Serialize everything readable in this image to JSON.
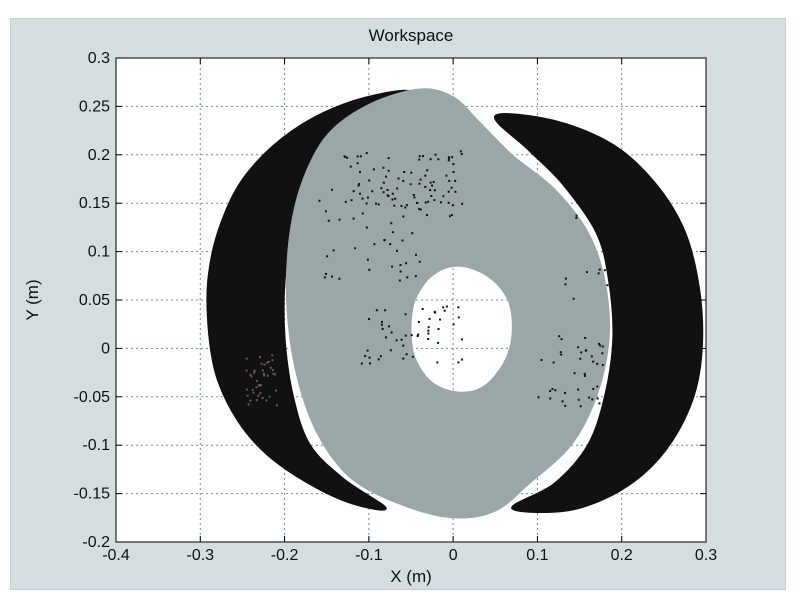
{
  "chart_data": {
    "type": "scatter",
    "title": "Workspace",
    "xlabel": "X (m)",
    "ylabel": "Y (m)",
    "xlim": [
      -0.4,
      0.3
    ],
    "ylim": [
      -0.2,
      0.3
    ],
    "grid": true,
    "xticks": [
      "-0.4",
      "-0.3",
      "-0.2",
      "-0.1",
      "0",
      "0.1",
      "0.2",
      "0.3"
    ],
    "yticks": [
      "-0.2",
      "-0.15",
      "-0.1",
      "-0.05",
      "0",
      "0.05",
      "0.1",
      "0.15",
      "0.2",
      "0.25",
      "0.3"
    ],
    "xtick_values": [
      -0.4,
      -0.3,
      -0.2,
      -0.1,
      0,
      0.1,
      0.2,
      0.3
    ],
    "ytick_values": [
      -0.2,
      -0.15,
      -0.1,
      -0.05,
      0,
      0.05,
      0.1,
      0.15,
      0.2,
      0.25,
      0.3
    ],
    "series": [
      {
        "color": "#111111",
        "regions": [
          {
            "part": "left-crescent",
            "outline": [
              [
                -0.05,
                0.265
              ],
              [
                -0.12,
                0.255
              ],
              [
                -0.19,
                0.225
              ],
              [
                -0.245,
                0.18
              ],
              [
                -0.275,
                0.13
              ],
              [
                -0.29,
                0.075
              ],
              [
                -0.29,
                0.02
              ],
              [
                -0.28,
                -0.03
              ],
              [
                -0.255,
                -0.075
              ],
              [
                -0.22,
                -0.11
              ],
              [
                -0.17,
                -0.14
              ],
              [
                -0.12,
                -0.16
              ],
              [
                -0.08,
                -0.165
              ],
              [
                -0.13,
                -0.135
              ],
              [
                -0.17,
                -0.1
              ],
              [
                -0.19,
                -0.05
              ],
              [
                -0.2,
                0.01
              ],
              [
                -0.2,
                0.07
              ],
              [
                -0.19,
                0.12
              ],
              [
                -0.16,
                0.175
              ],
              [
                -0.1,
                0.23
              ]
            ]
          },
          {
            "part": "right-crescent",
            "outline": [
              [
                0.05,
                0.24
              ],
              [
                0.12,
                0.235
              ],
              [
                0.19,
                0.21
              ],
              [
                0.24,
                0.17
              ],
              [
                0.275,
                0.12
              ],
              [
                0.292,
                0.06
              ],
              [
                0.295,
                0.0
              ],
              [
                0.285,
                -0.05
              ],
              [
                0.26,
                -0.095
              ],
              [
                0.225,
                -0.13
              ],
              [
                0.18,
                -0.155
              ],
              [
                0.13,
                -0.168
              ],
              [
                0.07,
                -0.165
              ],
              [
                0.12,
                -0.14
              ],
              [
                0.16,
                -0.1
              ],
              [
                0.18,
                -0.05
              ],
              [
                0.19,
                0.01
              ],
              [
                0.185,
                0.07
              ],
              [
                0.17,
                0.12
              ],
              [
                0.13,
                0.17
              ],
              [
                0.09,
                0.205
              ]
            ]
          }
        ]
      },
      {
        "color": "#9aa6a8",
        "regions": [
          {
            "part": "outer-boundary",
            "outline": [
              [
                -0.04,
                0.268
              ],
              [
                -0.1,
                0.252
              ],
              [
                -0.15,
                0.22
              ],
              [
                -0.18,
                0.17
              ],
              [
                -0.195,
                0.11
              ],
              [
                -0.197,
                0.04
              ],
              [
                -0.185,
                -0.03
              ],
              [
                -0.16,
                -0.09
              ],
              [
                -0.12,
                -0.135
              ],
              [
                -0.06,
                -0.162
              ],
              [
                0.0,
                -0.175
              ],
              [
                0.05,
                -0.168
              ],
              [
                0.09,
                -0.14
              ],
              [
                0.14,
                -0.1
              ],
              [
                0.17,
                -0.05
              ],
              [
                0.185,
                0.01
              ],
              [
                0.18,
                0.07
              ],
              [
                0.16,
                0.12
              ],
              [
                0.12,
                0.165
              ],
              [
                0.07,
                0.2
              ],
              [
                0.03,
                0.235
              ],
              [
                0.0,
                0.26
              ]
            ]
          },
          {
            "part": "inner-hole",
            "outline": [
              [
                0.005,
                0.085
              ],
              [
                -0.025,
                0.075
              ],
              [
                -0.045,
                0.05
              ],
              [
                -0.05,
                0.02
              ],
              [
                -0.045,
                -0.01
              ],
              [
                -0.025,
                -0.035
              ],
              [
                0.005,
                -0.045
              ],
              [
                0.035,
                -0.04
              ],
              [
                0.06,
                -0.015
              ],
              [
                0.07,
                0.015
              ],
              [
                0.065,
                0.05
              ],
              [
                0.04,
                0.075
              ]
            ]
          }
        ]
      }
    ]
  }
}
